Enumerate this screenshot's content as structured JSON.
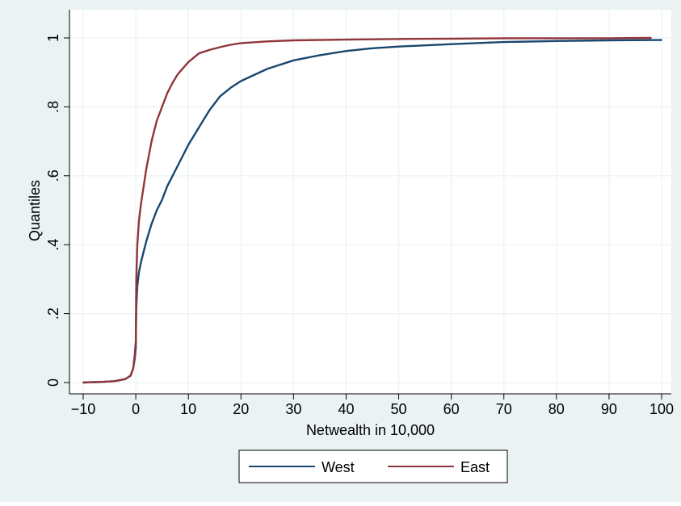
{
  "chart_data": {
    "type": "line",
    "title": "",
    "xlabel": "Netwealth in 10,000",
    "ylabel": "Quantiles",
    "xlim": [
      -10,
      100
    ],
    "ylim": [
      0,
      1
    ],
    "x_ticks": [
      -10,
      0,
      10,
      20,
      30,
      40,
      50,
      60,
      70,
      80,
      90,
      100
    ],
    "x_tick_labels": [
      "−10",
      "0",
      "10",
      "20",
      "30",
      "40",
      "50",
      "60",
      "70",
      "80",
      "90",
      "100"
    ],
    "y_ticks": [
      0,
      0.2,
      0.4,
      0.6,
      0.8,
      1
    ],
    "y_tick_labels": [
      "0",
      ".2",
      ".4",
      ".6",
      ".8",
      "1"
    ],
    "grid": true,
    "legend_position": "bottom",
    "colors": {
      "background": "#eaf2f3",
      "plot_area": "#ffffff",
      "grid": "#eaf2f3",
      "west": "#1a476f",
      "east": "#90353b"
    },
    "series": [
      {
        "name": "West",
        "color": "#1a476f",
        "points": [
          [
            -10,
            0
          ],
          [
            -6,
            0.002
          ],
          [
            -4,
            0.004
          ],
          [
            -2,
            0.01
          ],
          [
            -1,
            0.02
          ],
          [
            -0.5,
            0.04
          ],
          [
            -0.2,
            0.07
          ],
          [
            0,
            0.1
          ],
          [
            0.1,
            0.22
          ],
          [
            0.3,
            0.28
          ],
          [
            0.6,
            0.32
          ],
          [
            1,
            0.35
          ],
          [
            2,
            0.41
          ],
          [
            3,
            0.46
          ],
          [
            4,
            0.5
          ],
          [
            5,
            0.53
          ],
          [
            6,
            0.57
          ],
          [
            7,
            0.6
          ],
          [
            8,
            0.63
          ],
          [
            10,
            0.69
          ],
          [
            12,
            0.74
          ],
          [
            14,
            0.79
          ],
          [
            16,
            0.83
          ],
          [
            18,
            0.855
          ],
          [
            20,
            0.875
          ],
          [
            25,
            0.91
          ],
          [
            30,
            0.935
          ],
          [
            35,
            0.95
          ],
          [
            40,
            0.962
          ],
          [
            45,
            0.97
          ],
          [
            50,
            0.975
          ],
          [
            60,
            0.982
          ],
          [
            70,
            0.988
          ],
          [
            80,
            0.991
          ],
          [
            90,
            0.993
          ],
          [
            100,
            0.994
          ]
        ]
      },
      {
        "name": "East",
        "color": "#90353b",
        "points": [
          [
            -10,
            0
          ],
          [
            -6,
            0.002
          ],
          [
            -4,
            0.004
          ],
          [
            -2,
            0.01
          ],
          [
            -1,
            0.02
          ],
          [
            -0.5,
            0.04
          ],
          [
            -0.2,
            0.08
          ],
          [
            0,
            0.12
          ],
          [
            0.1,
            0.3
          ],
          [
            0.3,
            0.4
          ],
          [
            0.6,
            0.47
          ],
          [
            1,
            0.52
          ],
          [
            2,
            0.62
          ],
          [
            3,
            0.7
          ],
          [
            4,
            0.76
          ],
          [
            5,
            0.8
          ],
          [
            6,
            0.84
          ],
          [
            7,
            0.87
          ],
          [
            8,
            0.895
          ],
          [
            10,
            0.93
          ],
          [
            12,
            0.955
          ],
          [
            14,
            0.965
          ],
          [
            16,
            0.973
          ],
          [
            18,
            0.98
          ],
          [
            20,
            0.985
          ],
          [
            25,
            0.99
          ],
          [
            30,
            0.993
          ],
          [
            40,
            0.995
          ],
          [
            50,
            0.997
          ],
          [
            60,
            0.998
          ],
          [
            70,
            0.999
          ],
          [
            80,
            0.999
          ],
          [
            90,
            0.999
          ],
          [
            98,
            1
          ]
        ]
      }
    ]
  }
}
